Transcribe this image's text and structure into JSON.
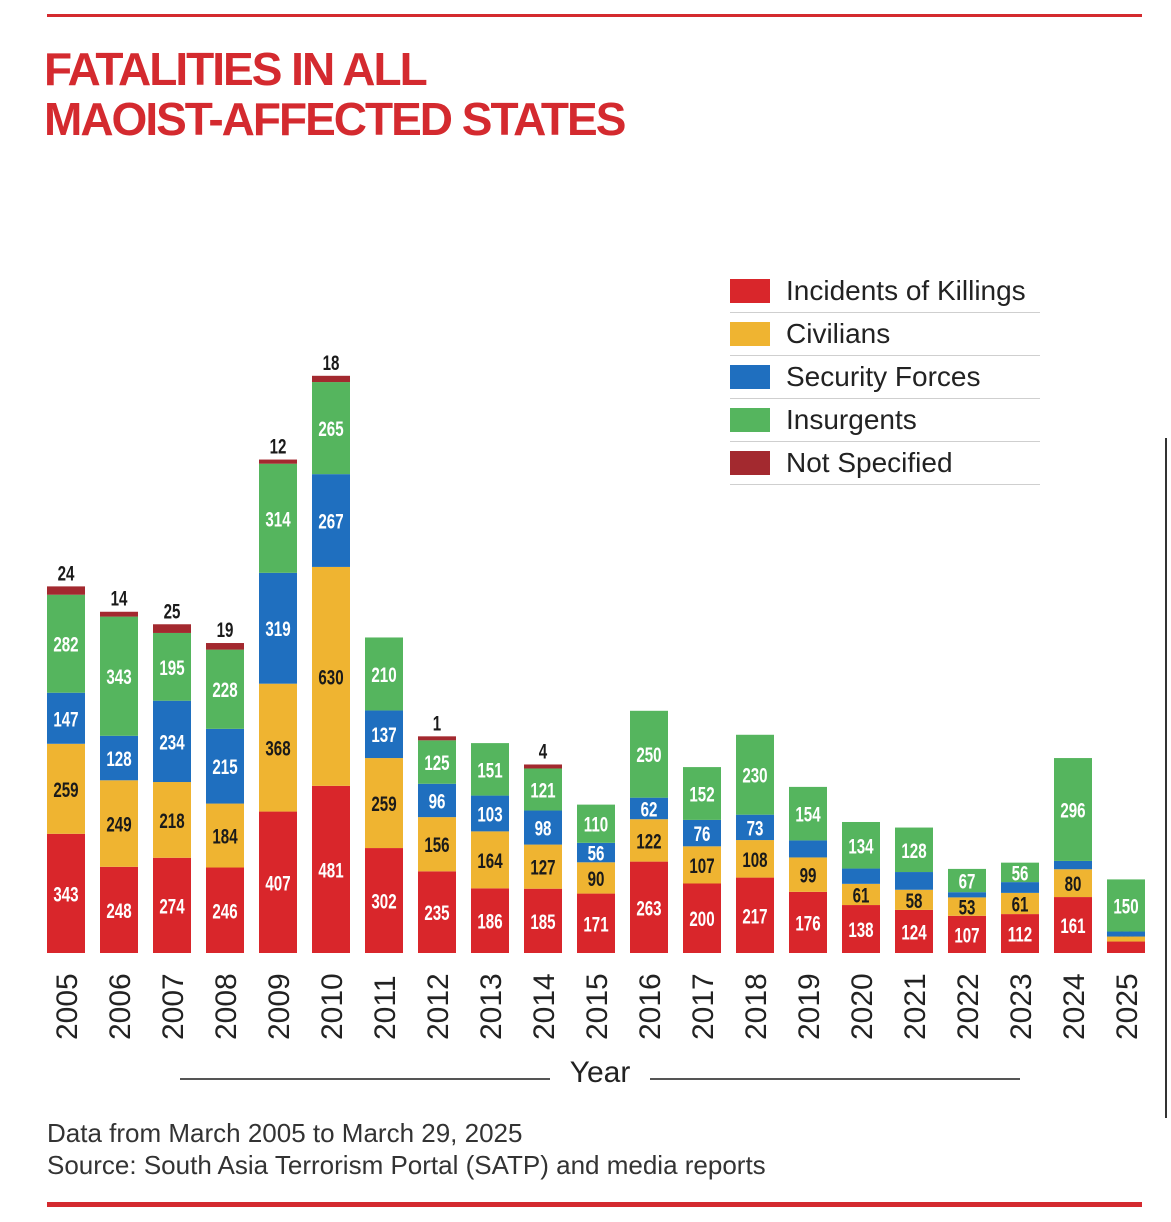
{
  "title_lines": [
    "FATALITIES IN ALL",
    "MAOIST-AFFECTED STATES"
  ],
  "colors": {
    "brand_red": "#d42a2f",
    "Incidents of Killings": "#d9262b",
    "Civilians": "#efb431",
    "Security Forces": "#1f6fbf",
    "Insurgents": "#55b55e",
    "Not Specified": "#a3292f"
  },
  "legend": [
    {
      "label": "Incidents of Killings",
      "color": "#d9262b"
    },
    {
      "label": "Civilians",
      "color": "#efb431"
    },
    {
      "label": "Security Forces",
      "color": "#1f6fbf"
    },
    {
      "label": "Insurgents",
      "color": "#55b55e"
    },
    {
      "label": "Not Specified",
      "color": "#a3292f"
    }
  ],
  "chart_data": {
    "type": "bar",
    "stacked": true,
    "xlabel": "Year",
    "categories": [
      "2005",
      "2006",
      "2007",
      "2008",
      "2009",
      "2010",
      "2011",
      "2012",
      "2013",
      "2014",
      "2015",
      "2016",
      "2017",
      "2018",
      "2019",
      "2020",
      "2021",
      "2022",
      "2023",
      "2024",
      "2025"
    ],
    "series": [
      {
        "name": "Incidents of Killings",
        "values": [
          343,
          248,
          274,
          246,
          407,
          481,
          302,
          235,
          186,
          185,
          171,
          263,
          200,
          217,
          176,
          138,
          124,
          107,
          112,
          161,
          33
        ]
      },
      {
        "name": "Civilians",
        "values": [
          259,
          249,
          218,
          184,
          368,
          630,
          259,
          156,
          164,
          127,
          90,
          122,
          107,
          108,
          99,
          61,
          58,
          53,
          61,
          80,
          14
        ]
      },
      {
        "name": "Security Forces",
        "values": [
          147,
          128,
          234,
          215,
          319,
          267,
          137,
          96,
          103,
          98,
          56,
          62,
          76,
          73,
          49,
          44,
          51,
          15,
          31,
          24,
          14
        ]
      },
      {
        "name": "Insurgents",
        "values": [
          282,
          343,
          195,
          228,
          314,
          265,
          210,
          125,
          151,
          121,
          110,
          250,
          152,
          230,
          154,
          134,
          128,
          67,
          56,
          296,
          150
        ]
      },
      {
        "name": "Not Specified",
        "values": [
          24,
          14,
          25,
          19,
          12,
          18,
          null,
          1,
          null,
          4,
          null,
          null,
          null,
          null,
          null,
          null,
          null,
          null,
          null,
          null,
          null
        ]
      }
    ],
    "legend_position": "top-right",
    "grid": false
  },
  "footer": {
    "note": "Data from March 2005 to March 29, 2025",
    "source": "Source: South Asia Terrorism Portal (SATP) and media reports"
  }
}
